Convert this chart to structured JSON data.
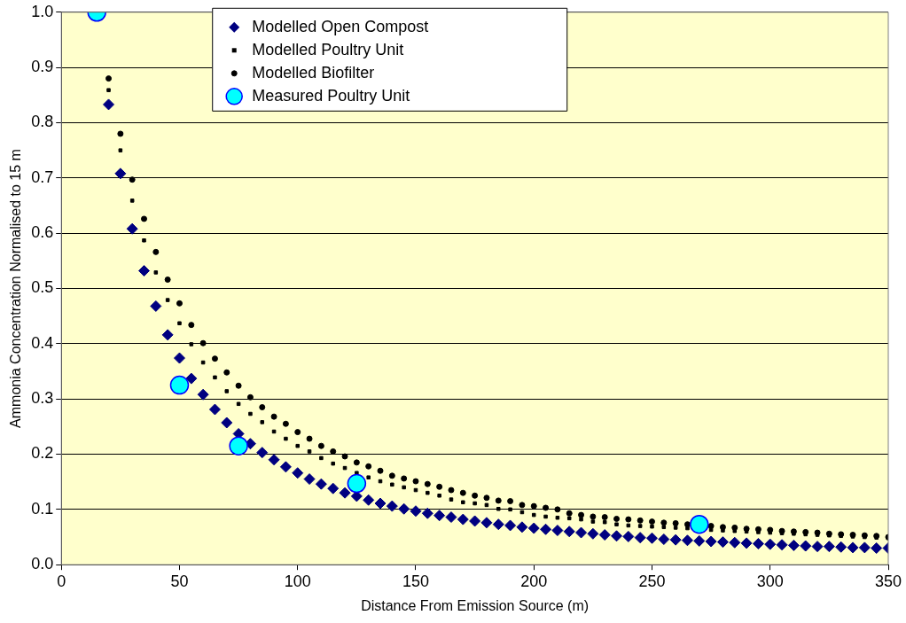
{
  "chart_data": {
    "type": "scatter",
    "xlabel": "Distance From Emission Source (m)",
    "ylabel": "Ammonia Concentration Normalised to 15 m",
    "xlim": [
      0,
      350
    ],
    "xticks": [
      0,
      50,
      100,
      150,
      200,
      250,
      300,
      350
    ],
    "ylim": [
      0,
      1
    ],
    "yticks": [
      {
        "value": 0,
        "label": "0.0"
      },
      0.1,
      0.2,
      0.3,
      0.4,
      0.5,
      0.6,
      0.7,
      0.8,
      0.9,
      {
        "value": 1,
        "label": "1.0"
      }
    ],
    "grid": "y",
    "legend": "top",
    "x": [
      20,
      25,
      30,
      35,
      40,
      45,
      50,
      55,
      60,
      65,
      70,
      75,
      80,
      85,
      90,
      95,
      100,
      105,
      110,
      115,
      120,
      125,
      130,
      135,
      140,
      145,
      150,
      155,
      160,
      165,
      170,
      175,
      180,
      185,
      190,
      195,
      200,
      205,
      210,
      215,
      220,
      225,
      230,
      235,
      240,
      245,
      250,
      255,
      260,
      265,
      270,
      275,
      280,
      285,
      290,
      295,
      300,
      305,
      310,
      315,
      320,
      325,
      330,
      335,
      340,
      345,
      350
    ],
    "series": [
      {
        "name": "Modelled Open Compost",
        "color": "#000080",
        "marker": "diamond",
        "values": [
          0.833,
          0.708,
          0.608,
          0.532,
          0.468,
          0.416,
          0.374,
          0.337,
          0.308,
          0.281,
          0.257,
          0.237,
          0.219,
          0.203,
          0.19,
          0.177,
          0.166,
          0.155,
          0.146,
          0.138,
          0.13,
          0.124,
          0.117,
          0.111,
          0.106,
          0.101,
          0.097,
          0.093,
          0.089,
          0.086,
          0.082,
          0.079,
          0.076,
          0.073,
          0.071,
          0.068,
          0.066,
          0.064,
          0.062,
          0.06,
          0.058,
          0.056,
          0.054,
          0.052,
          0.051,
          0.049,
          0.048,
          0.046,
          0.045,
          0.044,
          0.043,
          0.042,
          0.041,
          0.04,
          0.039,
          0.038,
          0.037,
          0.036,
          0.035,
          0.034,
          0.033,
          0.033,
          0.032,
          0.031,
          0.031,
          0.03,
          0.03
        ]
      },
      {
        "name": "Modelled Poultry Unit",
        "color": "#000000",
        "marker": "square",
        "values": [
          0.859,
          0.75,
          0.659,
          0.587,
          0.529,
          0.479,
          0.437,
          0.399,
          0.366,
          0.339,
          0.314,
          0.291,
          0.273,
          0.258,
          0.241,
          0.228,
          0.215,
          0.205,
          0.193,
          0.183,
          0.175,
          0.166,
          0.158,
          0.151,
          0.145,
          0.14,
          0.135,
          0.13,
          0.125,
          0.118,
          0.113,
          0.111,
          0.108,
          0.101,
          0.1,
          0.095,
          0.09,
          0.087,
          0.085,
          0.084,
          0.082,
          0.078,
          0.077,
          0.073,
          0.071,
          0.07,
          0.069,
          0.068,
          0.067,
          0.066,
          null,
          0.063,
          0.062,
          0.061,
          0.06,
          0.059,
          0.058,
          0.057,
          0.056,
          0.055,
          0.054,
          0.053,
          0.052,
          0.051,
          0.05,
          0.049,
          0.048
        ]
      },
      {
        "name": "Modelled Biofilter",
        "color": "#000000",
        "marker": "circle",
        "values": [
          0.88,
          0.78,
          0.697,
          0.626,
          0.566,
          0.516,
          0.473,
          0.434,
          0.401,
          0.373,
          0.348,
          0.324,
          0.303,
          0.285,
          0.268,
          0.255,
          0.24,
          0.228,
          0.215,
          0.205,
          0.196,
          0.185,
          0.178,
          0.17,
          0.161,
          0.156,
          0.151,
          0.146,
          0.141,
          0.135,
          0.13,
          0.125,
          0.121,
          0.116,
          0.115,
          0.108,
          0.106,
          0.103,
          0.1,
          0.093,
          0.09,
          0.087,
          0.086,
          0.083,
          0.082,
          0.08,
          0.078,
          0.076,
          0.075,
          0.073,
          null,
          0.07,
          0.068,
          0.067,
          0.065,
          0.064,
          0.063,
          0.061,
          0.06,
          0.059,
          0.058,
          0.056,
          0.055,
          0.054,
          0.053,
          0.052,
          0.05
        ]
      },
      {
        "name": "Measured Poultry Unit",
        "color": "#00ffff",
        "marker": "circle",
        "x": [
          15,
          50,
          75,
          125,
          270
        ],
        "values": [
          1.0,
          0.325,
          0.215,
          0.147,
          0.073
        ]
      }
    ]
  }
}
